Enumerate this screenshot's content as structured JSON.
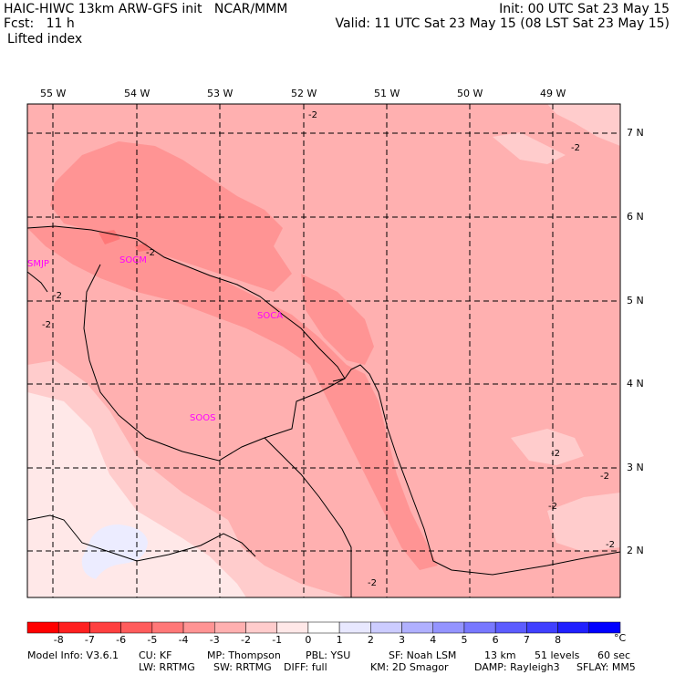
{
  "header": {
    "line1_left": "HAIC-HIWC 13km ARW-GFS init   NCAR/MMM",
    "line1_right": "Init: 00 UTC Sat 23 May 15",
    "line2_left": "Fcst:   11 h",
    "line2_right": "Valid: 11 UTC Sat 23 May 15 (08 LST Sat 23 May 15)",
    "field": "Lifted index"
  },
  "map": {
    "lon_labels": [
      "55 W",
      "54 W",
      "53 W",
      "52 W",
      "51 W",
      "50 W",
      "49 W"
    ],
    "lat_labels": [
      "7 N",
      "6 N",
      "5 N",
      "4 N",
      "3 N",
      "2 N"
    ],
    "stations": [
      "SMJP",
      "SOCM",
      "SOCA",
      "SOOS"
    ],
    "contour_labels": [
      "-2",
      "-2",
      "-2",
      "-2",
      "-2",
      "-2",
      "-2",
      "-2",
      "-2",
      "-2"
    ]
  },
  "colorbar": {
    "unit": "°C",
    "ticks": [
      "-8",
      "-7",
      "-6",
      "-5",
      "-4",
      "-3",
      "-2",
      "-1",
      "0",
      "1",
      "2",
      "3",
      "4",
      "5",
      "6",
      "7",
      "8"
    ],
    "colors": [
      "#ff0000",
      "#ff2020",
      "#ff4040",
      "#ff5c5c",
      "#ff7878",
      "#ff9494",
      "#ffb0b0",
      "#ffcccc",
      "#ffe8e8",
      "#ffffff",
      "#e8e8ff",
      "#ccccff",
      "#b0b0ff",
      "#9494ff",
      "#7878ff",
      "#5c5cff",
      "#4040ff",
      "#2020ff",
      "#0000ff"
    ]
  },
  "footer": {
    "line1": [
      "Model Info: V3.6.1",
      "CU: KF",
      "MP: Thompson",
      "PBL: YSU",
      "SF: Noah LSM",
      "13 km",
      "51 levels",
      "60 sec"
    ],
    "line2": [
      "LW: RRTMG",
      "SW: RRTMG",
      "DIFF: full",
      "KM: 2D Smagor",
      "DAMP: Rayleigh3",
      "SFLAY: MM5"
    ]
  }
}
